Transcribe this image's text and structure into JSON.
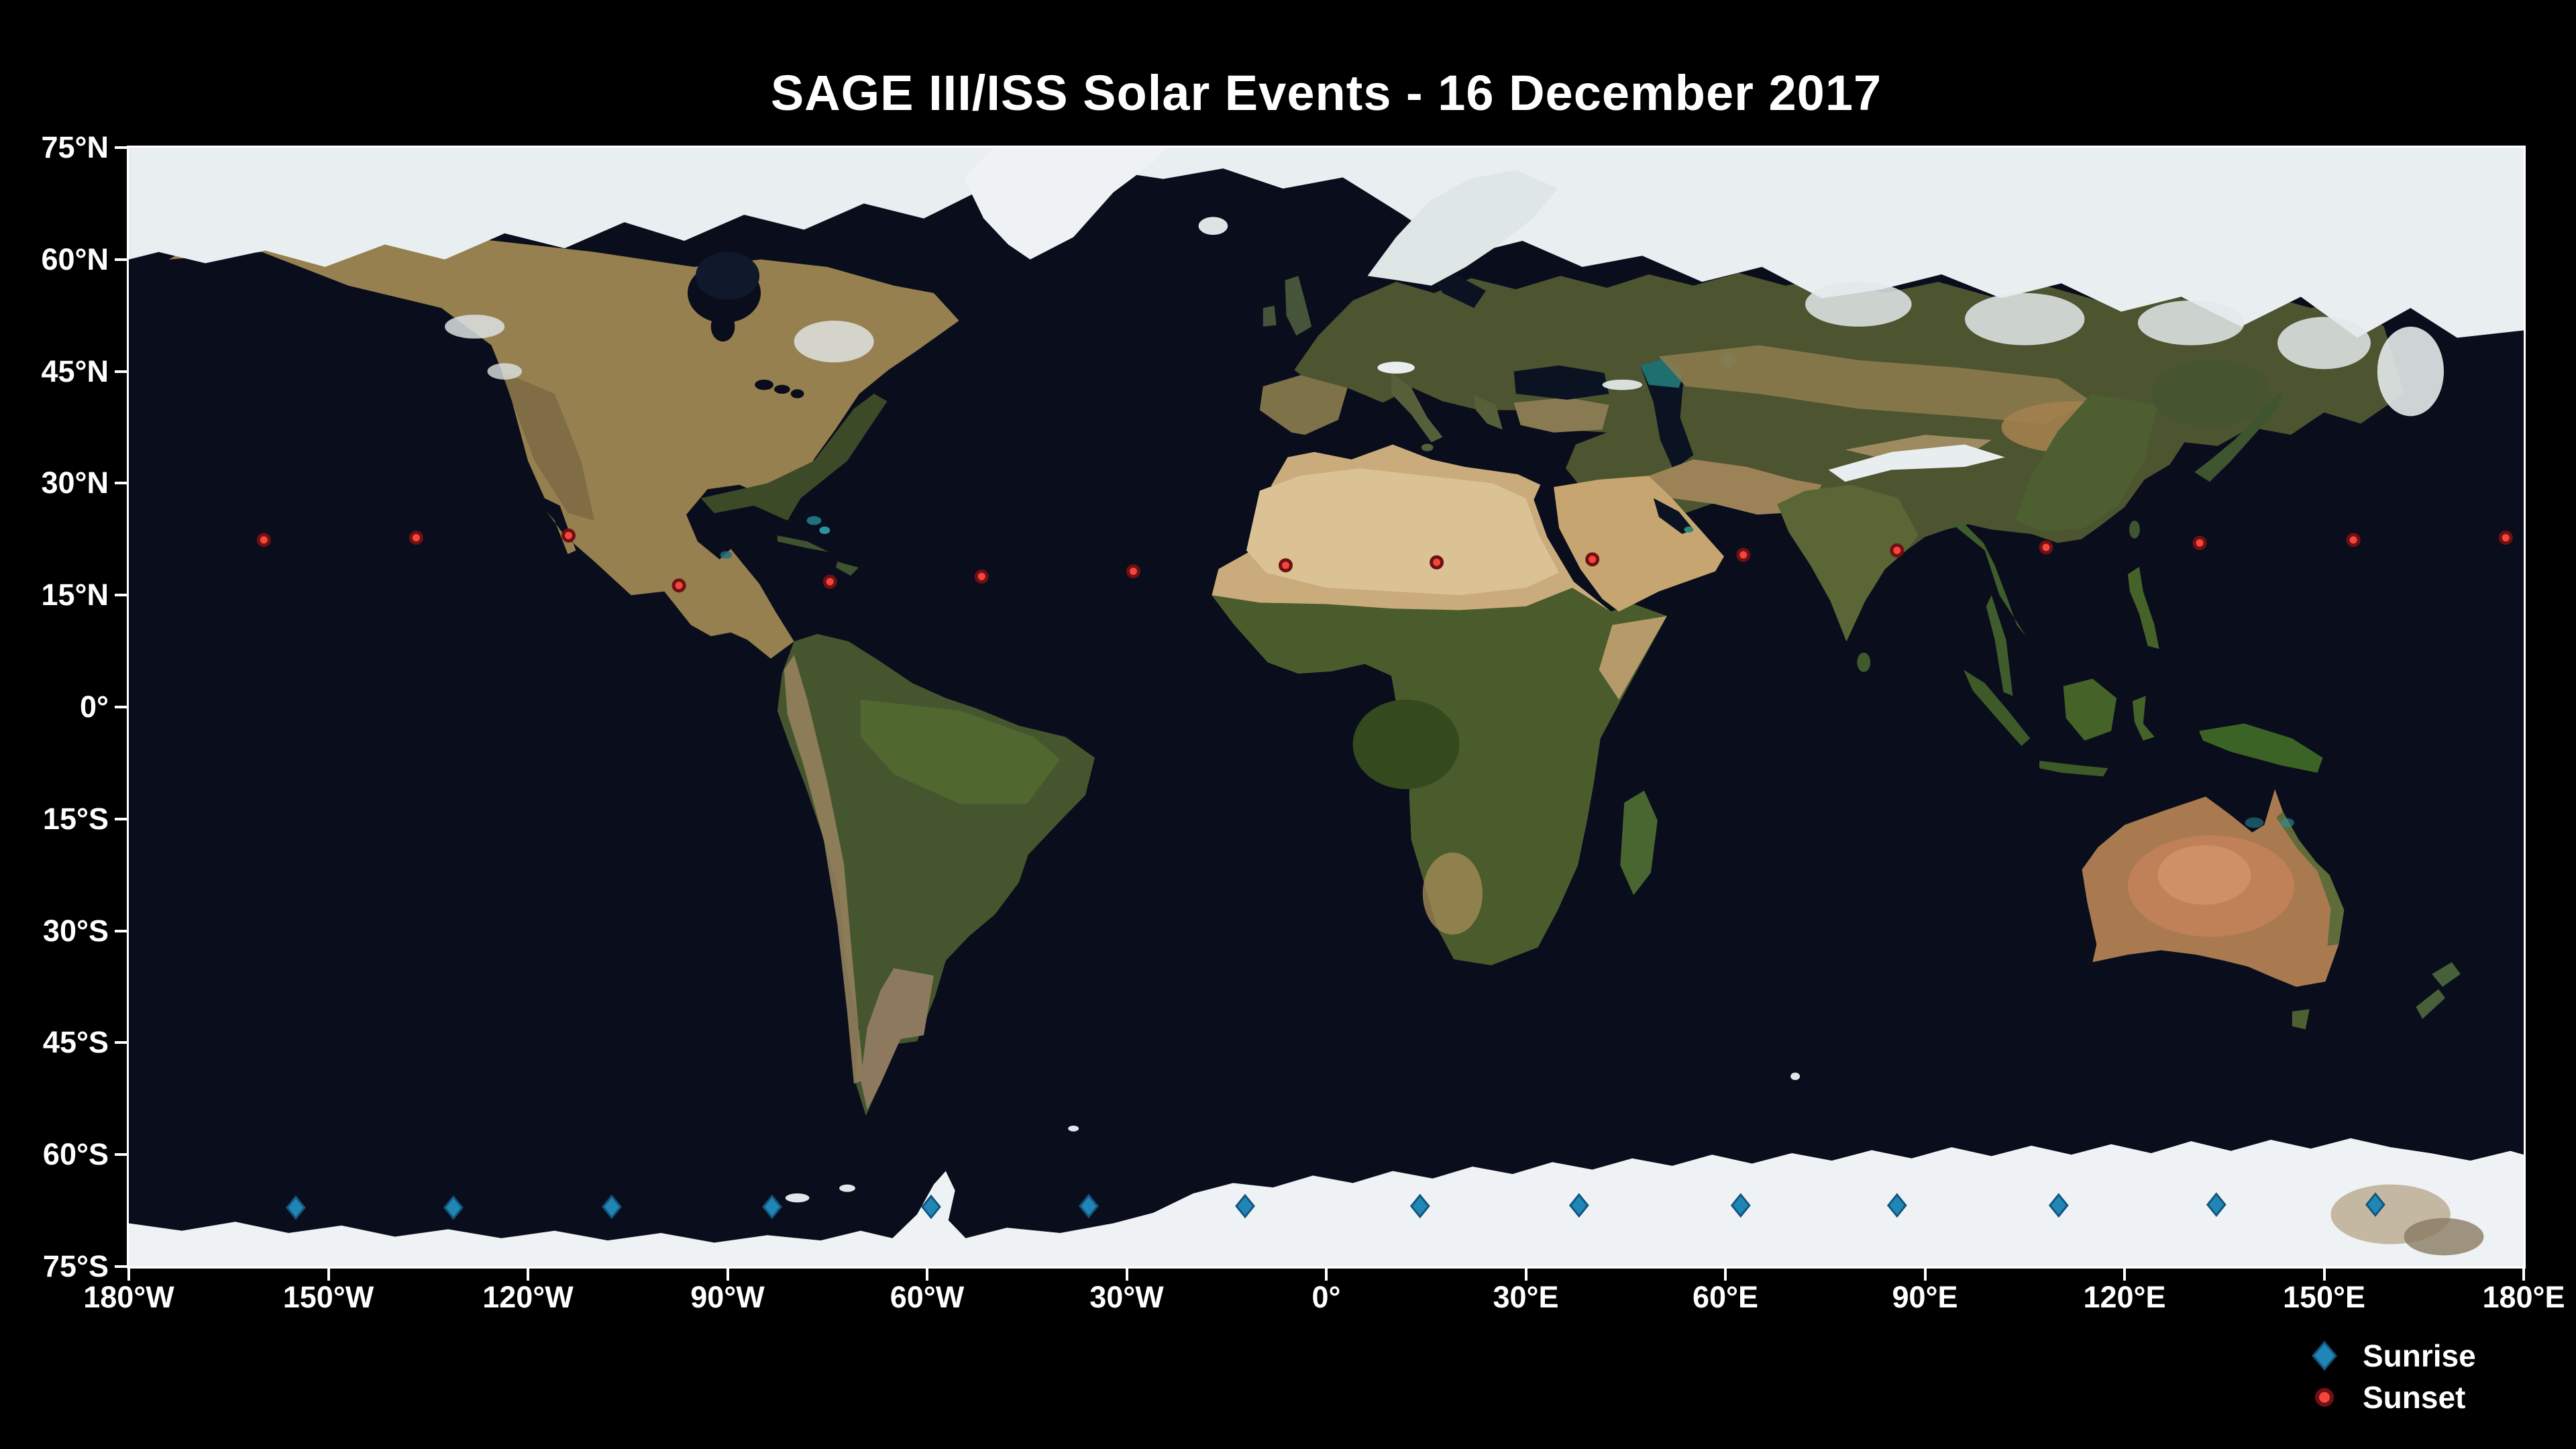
{
  "title": "SAGE III/ISS Solar Events - 16 December 2017",
  "colors": {
    "background": "#000000",
    "text": "#ffffff",
    "axis": "#ffffff",
    "ocean": "#0a0e1c",
    "sunrise_fill": "#1f86b6",
    "sunrise_edge": "#14557e",
    "sunset_fill": "#f4473c",
    "sunset_edge": "#701014"
  },
  "axes": {
    "x": {
      "min": -180,
      "max": 180,
      "ticks": [
        {
          "label": "180°W",
          "lon": -180
        },
        {
          "label": "150°W",
          "lon": -150
        },
        {
          "label": "120°W",
          "lon": -120
        },
        {
          "label": "90°W",
          "lon": -90
        },
        {
          "label": "60°W",
          "lon": -60
        },
        {
          "label": "30°W",
          "lon": -30
        },
        {
          "label": "0°",
          "lon": 0
        },
        {
          "label": "30°E",
          "lon": 30
        },
        {
          "label": "60°E",
          "lon": 60
        },
        {
          "label": "90°E",
          "lon": 90
        },
        {
          "label": "120°E",
          "lon": 120
        },
        {
          "label": "150°E",
          "lon": 150
        },
        {
          "label": "180°E",
          "lon": 180
        }
      ]
    },
    "y": {
      "min": -75,
      "max": 75,
      "ticks": [
        {
          "label": "75°N",
          "lat": 75
        },
        {
          "label": "60°N",
          "lat": 60
        },
        {
          "label": "45°N",
          "lat": 45
        },
        {
          "label": "30°N",
          "lat": 30
        },
        {
          "label": "15°N",
          "lat": 15
        },
        {
          "label": "0°",
          "lat": 0
        },
        {
          "label": "15°S",
          "lat": -15
        },
        {
          "label": "30°S",
          "lat": -30
        },
        {
          "label": "45°S",
          "lat": -45
        },
        {
          "label": "60°S",
          "lat": -60
        },
        {
          "label": "75°S",
          "lat": -75
        }
      ]
    }
  },
  "legend": {
    "items": [
      {
        "label": "Sunrise",
        "marker": "diamond"
      },
      {
        "label": "Sunset",
        "marker": "circle"
      }
    ]
  },
  "chart_data": {
    "type": "scatter",
    "title": "SAGE III/ISS Solar Events - 16 December 2017",
    "basemap": "world satellite imagery, equirectangular",
    "xlim": [
      -180,
      180
    ],
    "ylim": [
      -75,
      75
    ],
    "grid": false,
    "legend_position": "lower right outside",
    "series": [
      {
        "name": "Sunrise",
        "marker": "diamond",
        "color": "#1f86b6",
        "points": [
          {
            "lon": -154.9,
            "lat": -67.1
          },
          {
            "lon": -131.2,
            "lat": -67.1
          },
          {
            "lon": -107.4,
            "lat": -67.0
          },
          {
            "lon": -83.3,
            "lat": -67.0
          },
          {
            "lon": -59.4,
            "lat": -67.0
          },
          {
            "lon": -35.7,
            "lat": -66.9
          },
          {
            "lon": -12.2,
            "lat": -66.9
          },
          {
            "lon": 14.1,
            "lat": -66.9
          },
          {
            "lon": 38.0,
            "lat": -66.8
          },
          {
            "lon": 62.3,
            "lat": -66.8
          },
          {
            "lon": 85.8,
            "lat": -66.8
          },
          {
            "lon": 110.1,
            "lat": -66.8
          },
          {
            "lon": 133.8,
            "lat": -66.7
          },
          {
            "lon": 157.7,
            "lat": -66.7
          }
        ]
      },
      {
        "name": "Sunset",
        "marker": "circle",
        "color": "#f4473c",
        "points": [
          {
            "lon": -159.7,
            "lat": 22.4
          },
          {
            "lon": -136.8,
            "lat": 22.7
          },
          {
            "lon": -113.9,
            "lat": 23.0
          },
          {
            "lon": -97.3,
            "lat": 16.3
          },
          {
            "lon": -74.6,
            "lat": 16.8
          },
          {
            "lon": -51.8,
            "lat": 17.5
          },
          {
            "lon": -29.0,
            "lat": 18.2
          },
          {
            "lon": -6.1,
            "lat": 19.0
          },
          {
            "lon": 16.6,
            "lat": 19.4
          },
          {
            "lon": 40.0,
            "lat": 19.8
          },
          {
            "lon": 62.7,
            "lat": 20.4
          },
          {
            "lon": 85.8,
            "lat": 21.0
          },
          {
            "lon": 108.2,
            "lat": 21.4
          },
          {
            "lon": 131.3,
            "lat": 22.0
          },
          {
            "lon": 154.4,
            "lat": 22.4
          },
          {
            "lon": 177.3,
            "lat": 22.7
          }
        ]
      }
    ]
  }
}
